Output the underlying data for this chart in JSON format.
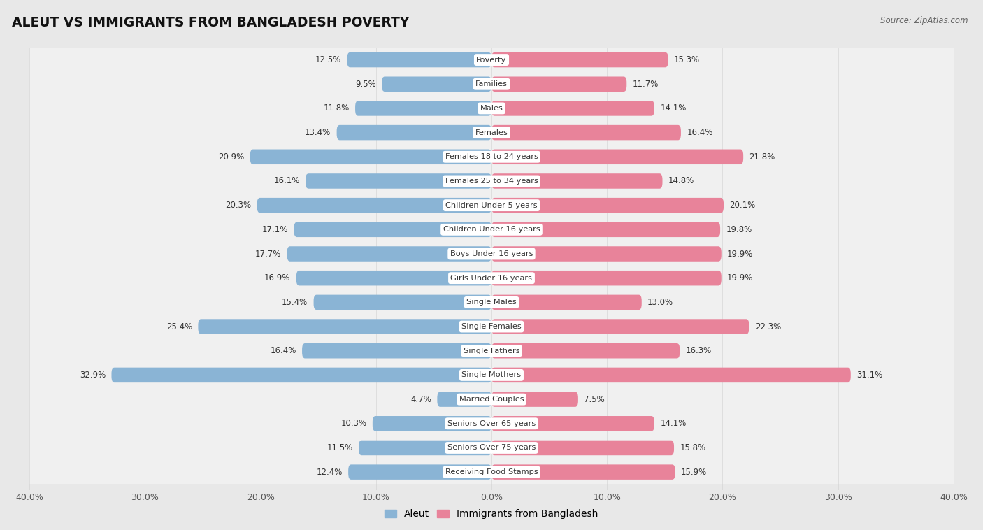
{
  "title": "ALEUT VS IMMIGRANTS FROM BANGLADESH POVERTY",
  "source": "Source: ZipAtlas.com",
  "categories": [
    "Poverty",
    "Families",
    "Males",
    "Females",
    "Females 18 to 24 years",
    "Females 25 to 34 years",
    "Children Under 5 years",
    "Children Under 16 years",
    "Boys Under 16 years",
    "Girls Under 16 years",
    "Single Males",
    "Single Females",
    "Single Fathers",
    "Single Mothers",
    "Married Couples",
    "Seniors Over 65 years",
    "Seniors Over 75 years",
    "Receiving Food Stamps"
  ],
  "aleut_values": [
    12.5,
    9.5,
    11.8,
    13.4,
    20.9,
    16.1,
    20.3,
    17.1,
    17.7,
    16.9,
    15.4,
    25.4,
    16.4,
    32.9,
    4.7,
    10.3,
    11.5,
    12.4
  ],
  "bangladesh_values": [
    15.3,
    11.7,
    14.1,
    16.4,
    21.8,
    14.8,
    20.1,
    19.8,
    19.9,
    19.9,
    13.0,
    22.3,
    16.3,
    31.1,
    7.5,
    14.1,
    15.8,
    15.9
  ],
  "aleut_color": "#8ab4d5",
  "bangladesh_color": "#e8839a",
  "row_light": "#e8e8e8",
  "row_dark": "#f5f5f5",
  "background_color": "#e8e8e8",
  "axis_limit": 40.0,
  "legend_aleut": "Aleut",
  "legend_bangladesh": "Immigrants from Bangladesh"
}
